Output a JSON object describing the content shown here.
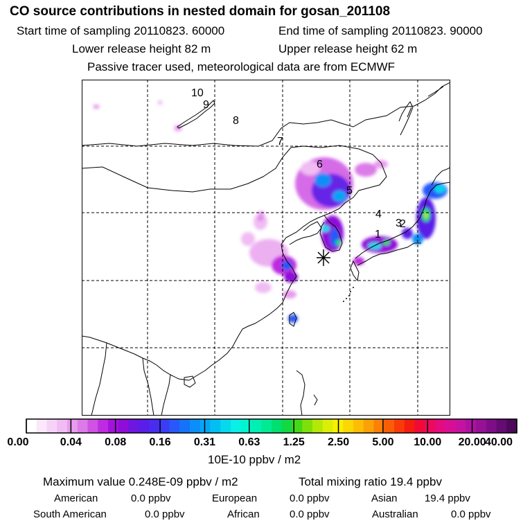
{
  "header": {
    "title": "CO  source contributions in nested domain for gosan_201108",
    "start_time": "Start time of sampling 20110823. 60000",
    "end_time": "End time of sampling 20110823. 90000",
    "lower_height": "Lower release height   82 m",
    "upper_height": "Upper release height   62 m",
    "tracer_note": "Passive tracer used, meteorological data are from ECMWF"
  },
  "map": {
    "trajectory_labels": [
      "1",
      "2",
      "3",
      "4",
      "5",
      "6",
      "7",
      "8",
      "9",
      "10"
    ],
    "receptor_symbol": "asterisk"
  },
  "colorbar": {
    "tick_labels": [
      "0.00",
      "0.04",
      "0.08",
      "0.16",
      "0.31",
      "0.63",
      "1.25",
      "2.50",
      "5.00",
      "10.00",
      "20.00",
      "40.00"
    ],
    "colors": [
      "#ffffff",
      "#fbe8fb",
      "#f7d2f7",
      "#f0bcf3",
      "#e79ced",
      "#dc7be8",
      "#cf52e4",
      "#be2be0",
      "#a412de",
      "#8f0dd8",
      "#6e17e0",
      "#5a1ee8",
      "#4a2bf0",
      "#3a3df5",
      "#2858f8",
      "#1473f9",
      "#0b8ef8",
      "#06a6f6",
      "#02bff2",
      "#06d8ee",
      "#0aefe6",
      "#00f5cf",
      "#00f0b4",
      "#00ea95",
      "#00e070",
      "#12d842",
      "#45d817",
      "#7ee00a",
      "#b4e806",
      "#dcee05",
      "#f8f004",
      "#fbd704",
      "#fcbe05",
      "#fba006",
      "#fa8007",
      "#f95e07",
      "#f83b08",
      "#f51c10",
      "#f00a38",
      "#ec0a5c",
      "#e30b7e",
      "#d60f94",
      "#c413a0",
      "#ad12a0",
      "#971197",
      "#7e0e87",
      "#660b73",
      "#4d0859"
    ],
    "unit": "10E-10 ppbv / m2"
  },
  "stats": {
    "max_value": "Maximum value  0.248E-09 ppbv / m2",
    "total_mixing": "Total mixing ratio       19.4 ppbv"
  },
  "regions": {
    "american": {
      "label": "American",
      "value": "0.0 ppbv"
    },
    "european": {
      "label": "European",
      "value": "0.0 ppbv"
    },
    "asian": {
      "label": "Asian",
      "value": "19.4 ppbv"
    },
    "south_american": {
      "label": "South American",
      "value": "0.0 ppbv"
    },
    "african": {
      "label": "African",
      "value": "0.0 ppbv"
    },
    "australian": {
      "label": "Australian",
      "value": "0.0 ppbv"
    }
  }
}
